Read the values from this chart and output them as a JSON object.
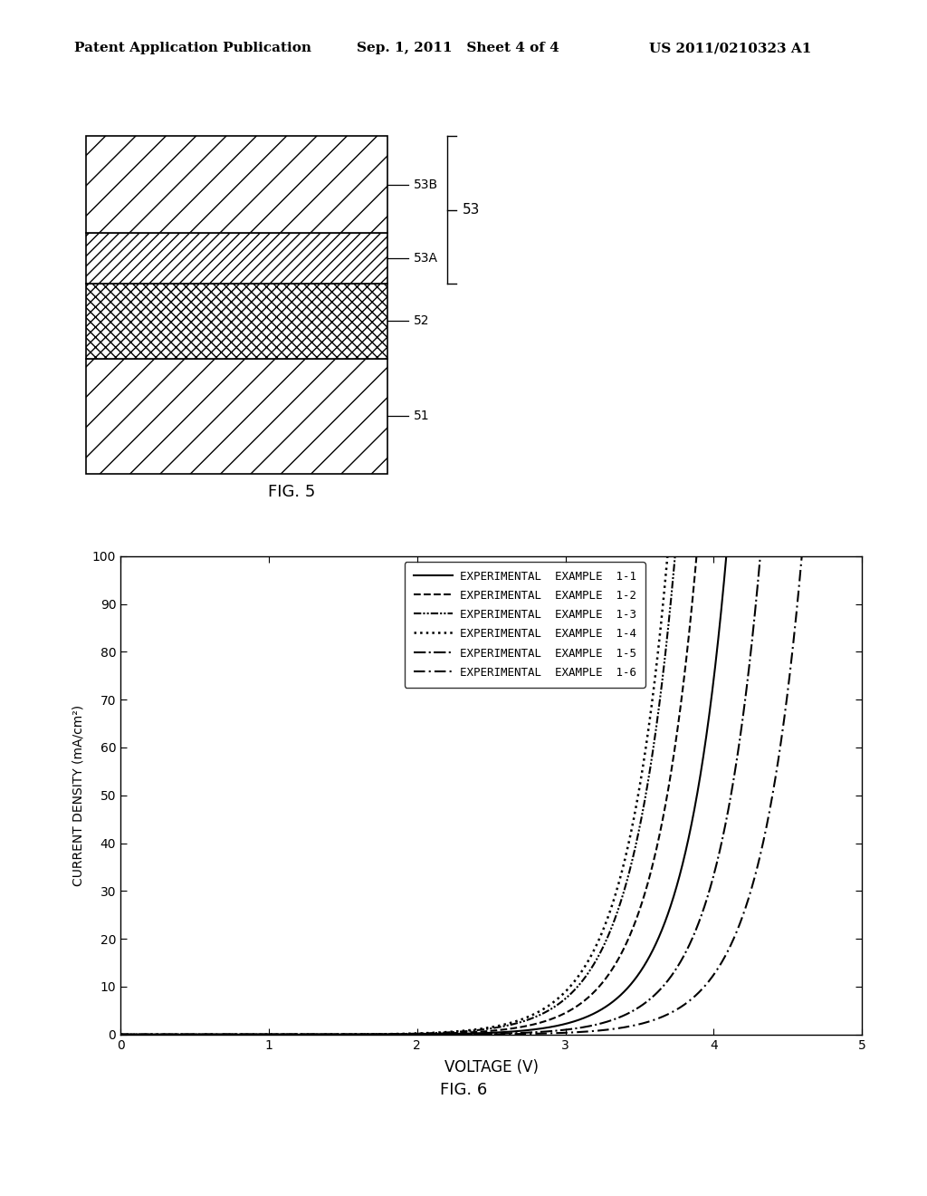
{
  "header_left": "Patent Application Publication",
  "header_mid": "Sep. 1, 2011   Sheet 4 of 4",
  "header_right": "US 2011/0210323 A1",
  "fig5_label": "FIG. 5",
  "fig6_label": "FIG. 6",
  "layer_labels": [
    "53B",
    "53A",
    "52",
    "51"
  ],
  "brace_label": "53",
  "xlabel": "VOLTAGE (V)",
  "ylabel": "CURRENT DENSITY (mA/cm²)",
  "xlim": [
    0,
    5
  ],
  "ylim": [
    0,
    100
  ],
  "xticks": [
    0,
    1,
    2,
    3,
    4,
    5
  ],
  "yticks": [
    0,
    10,
    20,
    30,
    40,
    50,
    60,
    70,
    80,
    90,
    100
  ],
  "legend_entries": [
    "EXPERIMENTAL  EXAMPLE  1-1",
    "EXPERIMENTAL  EXAMPLE  1-2",
    "EXPERIMENTAL  EXAMPLE  1-3",
    "EXPERIMENTAL  EXAMPLE  1-4",
    "EXPERIMENTAL  EXAMPLE  1-5",
    "EXPERIMENTAL  EXAMPLE  1-6"
  ],
  "background_color": "#ffffff"
}
